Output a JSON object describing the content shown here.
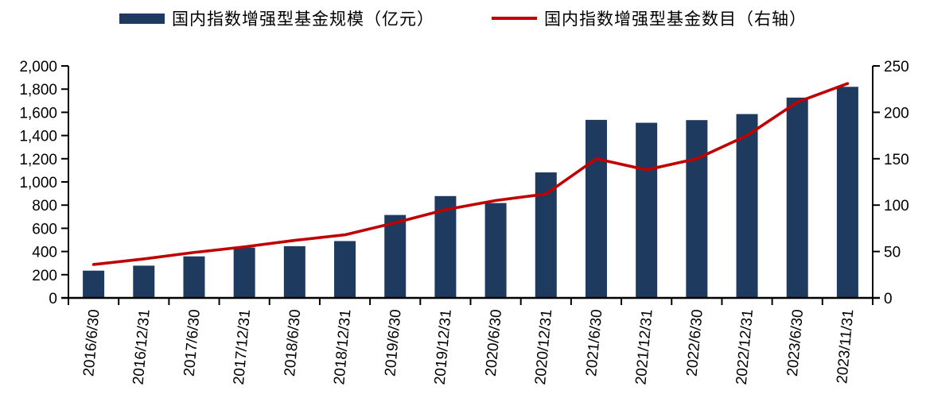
{
  "legend": {
    "bar_label": "国内指数增强型基金规模（亿元）",
    "line_label": "国内指数增强型基金数目（右轴）"
  },
  "colors": {
    "bar": "#1F3A5F",
    "line": "#C00000",
    "axis": "#000000"
  },
  "chart_data": {
    "type": "bar",
    "subtype": "bar+line dual axis",
    "title": "",
    "xlabel": "",
    "ylabel_left": "国内指数增强型基金规模（亿元）",
    "ylabel_right": "国内指数增强型基金数目（右轴）",
    "grid": false,
    "legend_position": "top",
    "categories": [
      "2016/6/30",
      "2016/12/31",
      "2017/6/30",
      "2017/12/31",
      "2018/6/30",
      "2018/12/31",
      "2019/6/30",
      "2019/12/31",
      "2020/6/30",
      "2020/12/31",
      "2021/6/30",
      "2021/12/31",
      "2022/6/30",
      "2022/12/31",
      "2023/6/30",
      "2023/11/31"
    ],
    "series": [
      {
        "name": "国内指数增强型基金规模（亿元）",
        "type": "bar",
        "axis": "left",
        "values": [
          235,
          278,
          358,
          434,
          446,
          490,
          715,
          878,
          818,
          1082,
          1535,
          1510,
          1533,
          1585,
          1727,
          1820
        ]
      },
      {
        "name": "国内指数增强型基金数目（右轴）",
        "type": "line",
        "axis": "right",
        "values": [
          36,
          42,
          49,
          55,
          62,
          68,
          81,
          95,
          105,
          112,
          150,
          138,
          150,
          175,
          211,
          231
        ]
      }
    ],
    "left_axis": {
      "min": 0,
      "max": 2000,
      "step": 200,
      "tick_labels": [
        "0",
        "200",
        "400",
        "600",
        "800",
        "1,000",
        "1,200",
        "1,400",
        "1,600",
        "1,800",
        "2,000"
      ]
    },
    "right_axis": {
      "min": 0,
      "max": 250,
      "step": 50,
      "tick_labels": [
        "0",
        "50",
        "100",
        "150",
        "200",
        "250"
      ]
    }
  }
}
